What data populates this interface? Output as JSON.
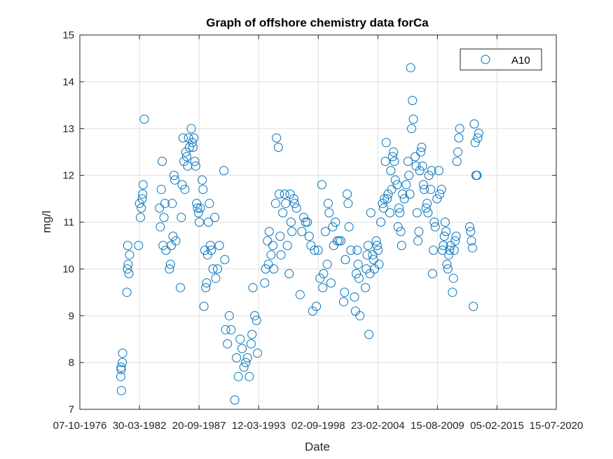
{
  "chart_data": {
    "type": "scatter",
    "title": "Graph of offshore chemistry data forCa",
    "xlabel": "Date",
    "ylabel": "mg/l",
    "xlim": [
      "1976-10-07",
      "2020-07-15"
    ],
    "ylim": [
      7,
      15
    ],
    "x_ticks": [
      "1976-10-07",
      "1982-03-30",
      "1987-09-20",
      "1993-03-12",
      "1998-09-02",
      "2004-02-23",
      "2009-08-15",
      "2015-02-05",
      "2020-07-15"
    ],
    "x_tick_labels": [
      "07-10-1976",
      "30-03-1982",
      "20-09-1987",
      "12-03-1993",
      "02-09-1998",
      "23-02-2004",
      "15-08-2009",
      "05-02-2015",
      "15-07-2020"
    ],
    "y_ticks": [
      7,
      8,
      9,
      10,
      11,
      12,
      13,
      14,
      15
    ],
    "y_tick_labels": [
      "7",
      "8",
      "9",
      "10",
      "11",
      "12",
      "13",
      "14",
      "15"
    ],
    "grid": true,
    "legend_position": "top-right",
    "colors": {
      "series": "#0072bd"
    },
    "series": [
      {
        "name": "A10",
        "points": [
          [
            "1980-08-01",
            7.4
          ],
          [
            "1980-07-10",
            7.7
          ],
          [
            "1980-07-20",
            7.9
          ],
          [
            "1980-09-01",
            8.0
          ],
          [
            "1980-09-10",
            8.2
          ],
          [
            "1980-07-25",
            7.85
          ],
          [
            "1981-02-01",
            9.5
          ],
          [
            "1981-02-20",
            10.0
          ],
          [
            "1981-03-15",
            10.1
          ],
          [
            "1981-04-10",
            9.9
          ],
          [
            "1981-05-01",
            10.3
          ],
          [
            "1981-03-01",
            10.5
          ],
          [
            "1982-03-01",
            10.5
          ],
          [
            "1982-05-01",
            11.1
          ],
          [
            "1982-04-01",
            11.4
          ],
          [
            "1982-06-01",
            11.3
          ],
          [
            "1982-07-01",
            11.5
          ],
          [
            "1982-07-15",
            11.6
          ],
          [
            "1982-08-01",
            11.8
          ],
          [
            "1982-09-10",
            13.2
          ],
          [
            "1984-02-01",
            11.3
          ],
          [
            "1984-03-01",
            10.9
          ],
          [
            "1984-04-01",
            11.7
          ],
          [
            "1984-05-01",
            12.3
          ],
          [
            "1984-06-01",
            10.5
          ],
          [
            "1984-07-01",
            11.1
          ],
          [
            "1984-09-01",
            10.4
          ],
          [
            "1984-08-01",
            11.4
          ],
          [
            "1985-01-01",
            10.0
          ],
          [
            "1985-02-01",
            10.1
          ],
          [
            "1985-03-01",
            10.5
          ],
          [
            "1985-04-01",
            11.4
          ],
          [
            "1985-05-01",
            10.7
          ],
          [
            "1985-06-01",
            12.0
          ],
          [
            "1985-07-01",
            11.9
          ],
          [
            "1985-08-01",
            10.6
          ],
          [
            "1986-01-01",
            9.6
          ],
          [
            "1986-02-01",
            11.1
          ],
          [
            "1986-03-01",
            11.8
          ],
          [
            "1986-04-01",
            12.8
          ],
          [
            "1986-05-01",
            12.3
          ],
          [
            "1986-06-01",
            11.7
          ],
          [
            "1986-07-01",
            12.5
          ],
          [
            "1986-08-01",
            12.4
          ],
          [
            "1986-09-01",
            12.2
          ],
          [
            "1986-10-01",
            12.8
          ],
          [
            "1986-11-01",
            12.6
          ],
          [
            "1987-01-01",
            13.0
          ],
          [
            "1987-02-01",
            12.7
          ],
          [
            "1987-03-01",
            12.6
          ],
          [
            "1987-04-01",
            12.8
          ],
          [
            "1987-05-01",
            12.3
          ],
          [
            "1987-06-01",
            12.2
          ],
          [
            "1987-07-01",
            11.4
          ],
          [
            "1987-08-01",
            11.3
          ],
          [
            "1987-09-01",
            11.2
          ],
          [
            "1987-10-01",
            11.0
          ],
          [
            "1987-11-01",
            11.3
          ],
          [
            "1988-01-01",
            11.9
          ],
          [
            "1988-02-01",
            11.7
          ],
          [
            "1988-03-01",
            9.2
          ],
          [
            "1988-04-01",
            10.4
          ],
          [
            "1988-05-01",
            9.6
          ],
          [
            "1988-06-01",
            9.7
          ],
          [
            "1988-07-01",
            10.3
          ],
          [
            "1988-08-01",
            11.0
          ],
          [
            "1988-09-01",
            11.4
          ],
          [
            "1988-10-01",
            10.5
          ],
          [
            "1988-11-01",
            10.4
          ],
          [
            "1989-01-01",
            10.0
          ],
          [
            "1989-03-01",
            11.1
          ],
          [
            "1989-04-01",
            9.8
          ],
          [
            "1989-06-01",
            10.0
          ],
          [
            "1989-08-01",
            10.5
          ],
          [
            "1990-01-01",
            12.1
          ],
          [
            "1990-02-01",
            10.2
          ],
          [
            "1990-03-01",
            8.7
          ],
          [
            "1990-05-01",
            8.4
          ],
          [
            "1990-07-01",
            9.0
          ],
          [
            "1990-09-01",
            8.7
          ],
          [
            "1991-01-01",
            7.2
          ],
          [
            "1991-03-01",
            8.1
          ],
          [
            "1991-05-01",
            7.7
          ],
          [
            "1991-07-01",
            8.5
          ],
          [
            "1991-09-01",
            8.3
          ],
          [
            "1991-11-01",
            7.9
          ],
          [
            "1992-01-01",
            8.0
          ],
          [
            "1992-03-01",
            8.1
          ],
          [
            "1992-05-01",
            7.7
          ],
          [
            "1992-07-01",
            8.4
          ],
          [
            "1992-08-01",
            8.6
          ],
          [
            "1992-09-01",
            9.6
          ],
          [
            "1992-11-01",
            9.0
          ],
          [
            "1993-01-01",
            8.9
          ],
          [
            "1993-02-01",
            8.2
          ],
          [
            "1993-10-01",
            9.7
          ],
          [
            "1993-11-01",
            10.0
          ],
          [
            "1994-01-01",
            10.6
          ],
          [
            "1994-02-01",
            10.1
          ],
          [
            "1994-03-01",
            10.8
          ],
          [
            "1994-05-01",
            10.3
          ],
          [
            "1994-07-01",
            10.5
          ],
          [
            "1994-08-01",
            10.0
          ],
          [
            "1994-10-01",
            11.4
          ],
          [
            "1994-11-01",
            12.8
          ],
          [
            "1995-01-01",
            12.6
          ],
          [
            "1995-02-01",
            11.6
          ],
          [
            "1995-03-01",
            10.7
          ],
          [
            "1995-04-01",
            10.3
          ],
          [
            "1995-06-01",
            11.2
          ],
          [
            "1995-08-01",
            11.6
          ],
          [
            "1995-09-01",
            11.4
          ],
          [
            "1995-11-01",
            10.5
          ],
          [
            "1996-01-01",
            9.9
          ],
          [
            "1996-02-01",
            11.6
          ],
          [
            "1996-03-01",
            11.0
          ],
          [
            "1996-04-01",
            10.8
          ],
          [
            "1996-06-01",
            11.5
          ],
          [
            "1996-07-01",
            11.4
          ],
          [
            "1996-09-01",
            11.3
          ],
          [
            "1997-01-01",
            9.45
          ],
          [
            "1997-03-01",
            10.8
          ],
          [
            "1997-05-01",
            11.1
          ],
          [
            "1997-07-01",
            11.0
          ],
          [
            "1997-09-01",
            11.0
          ],
          [
            "1997-11-01",
            10.7
          ],
          [
            "1998-01-01",
            10.5
          ],
          [
            "1998-03-01",
            9.1
          ],
          [
            "1998-05-01",
            10.4
          ],
          [
            "1998-07-01",
            9.2
          ],
          [
            "1998-09-01",
            10.4
          ],
          [
            "1998-11-01",
            9.8
          ],
          [
            "1999-01-01",
            11.8
          ],
          [
            "1999-02-01",
            9.6
          ],
          [
            "1999-03-01",
            9.9
          ],
          [
            "1999-05-01",
            10.8
          ],
          [
            "1999-07-01",
            10.1
          ],
          [
            "1999-08-01",
            11.4
          ],
          [
            "1999-09-01",
            11.2
          ],
          [
            "1999-11-01",
            9.7
          ],
          [
            "2000-01-01",
            10.9
          ],
          [
            "2000-02-01",
            10.5
          ],
          [
            "2000-04-01",
            11.0
          ],
          [
            "2000-06-01",
            10.6
          ],
          [
            "2000-08-01",
            10.6
          ],
          [
            "2000-10-01",
            10.6
          ],
          [
            "2001-01-01",
            9.3
          ],
          [
            "2001-02-01",
            9.5
          ],
          [
            "2001-03-01",
            10.2
          ],
          [
            "2001-05-01",
            11.6
          ],
          [
            "2001-06-01",
            11.4
          ],
          [
            "2001-07-01",
            10.9
          ],
          [
            "2001-09-01",
            10.4
          ],
          [
            "2002-01-01",
            9.4
          ],
          [
            "2002-02-01",
            9.1
          ],
          [
            "2002-03-01",
            9.9
          ],
          [
            "2002-04-01",
            10.4
          ],
          [
            "2002-05-01",
            10.1
          ],
          [
            "2002-06-01",
            9.8
          ],
          [
            "2002-07-01",
            9.0
          ],
          [
            "2003-01-01",
            9.6
          ],
          [
            "2003-02-01",
            10.0
          ],
          [
            "2003-03-01",
            10.3
          ],
          [
            "2003-04-01",
            10.5
          ],
          [
            "2003-05-01",
            8.6
          ],
          [
            "2003-06-01",
            9.9
          ],
          [
            "2003-07-01",
            11.2
          ],
          [
            "2003-09-01",
            10.3
          ],
          [
            "2003-10-01",
            10.2
          ],
          [
            "2003-11-01",
            10.0
          ],
          [
            "2004-01-01",
            10.6
          ],
          [
            "2004-02-01",
            10.5
          ],
          [
            "2004-03-01",
            10.4
          ],
          [
            "2004-04-01",
            10.1
          ],
          [
            "2004-06-01",
            11.0
          ],
          [
            "2004-08-01",
            11.4
          ],
          [
            "2004-09-01",
            11.3
          ],
          [
            "2004-10-01",
            11.5
          ],
          [
            "2004-11-01",
            12.3
          ],
          [
            "2004-12-01",
            12.7
          ],
          [
            "2005-01-01",
            11.5
          ],
          [
            "2005-02-01",
            11.6
          ],
          [
            "2005-04-01",
            11.2
          ],
          [
            "2005-05-01",
            12.1
          ],
          [
            "2005-06-01",
            11.7
          ],
          [
            "2005-07-01",
            12.4
          ],
          [
            "2005-08-01",
            12.5
          ],
          [
            "2005-09-01",
            12.3
          ],
          [
            "2005-10-01",
            11.9
          ],
          [
            "2005-12-01",
            11.8
          ],
          [
            "2006-01-01",
            10.9
          ],
          [
            "2006-02-01",
            11.3
          ],
          [
            "2006-03-01",
            11.2
          ],
          [
            "2006-04-01",
            10.8
          ],
          [
            "2006-05-01",
            10.5
          ],
          [
            "2006-06-01",
            11.6
          ],
          [
            "2006-08-01",
            11.5
          ],
          [
            "2006-10-01",
            11.8
          ],
          [
            "2006-12-01",
            12.3
          ],
          [
            "2007-01-01",
            12.0
          ],
          [
            "2007-02-01",
            11.6
          ],
          [
            "2007-03-01",
            14.3
          ],
          [
            "2007-04-01",
            13.0
          ],
          [
            "2007-05-01",
            13.6
          ],
          [
            "2007-06-01",
            13.2
          ],
          [
            "2007-08-01",
            12.4
          ],
          [
            "2007-09-01",
            12.2
          ],
          [
            "2007-10-01",
            11.2
          ],
          [
            "2007-11-01",
            10.6
          ],
          [
            "2007-12-01",
            10.8
          ],
          [
            "2008-01-01",
            12.1
          ],
          [
            "2008-02-01",
            12.5
          ],
          [
            "2008-03-01",
            12.6
          ],
          [
            "2008-04-01",
            12.2
          ],
          [
            "2008-05-01",
            11.8
          ],
          [
            "2008-06-01",
            11.7
          ],
          [
            "2008-08-01",
            11.3
          ],
          [
            "2008-09-01",
            11.4
          ],
          [
            "2008-10-01",
            11.2
          ],
          [
            "2008-11-01",
            12.0
          ],
          [
            "2009-01-01",
            11.7
          ],
          [
            "2009-02-01",
            12.1
          ],
          [
            "2009-03-01",
            9.9
          ],
          [
            "2009-04-01",
            10.4
          ],
          [
            "2009-05-01",
            11.0
          ],
          [
            "2009-06-01",
            10.9
          ],
          [
            "2009-08-01",
            11.5
          ],
          [
            "2009-10-01",
            12.1
          ],
          [
            "2009-11-01",
            11.6
          ],
          [
            "2010-01-01",
            11.7
          ],
          [
            "2010-02-01",
            10.4
          ],
          [
            "2010-03-01",
            10.5
          ],
          [
            "2010-04-01",
            10.7
          ],
          [
            "2010-05-01",
            11.0
          ],
          [
            "2010-06-01",
            10.8
          ],
          [
            "2010-07-01",
            10.1
          ],
          [
            "2010-08-01",
            10.0
          ],
          [
            "2010-09-01",
            10.3
          ],
          [
            "2010-10-01",
            10.4
          ],
          [
            "2010-11-01",
            10.5
          ],
          [
            "2011-01-01",
            9.5
          ],
          [
            "2011-02-01",
            9.8
          ],
          [
            "2011-03-01",
            10.4
          ],
          [
            "2011-04-01",
            10.6
          ],
          [
            "2011-05-01",
            10.7
          ],
          [
            "2011-06-01",
            12.3
          ],
          [
            "2011-07-01",
            12.5
          ],
          [
            "2011-08-01",
            12.8
          ],
          [
            "2011-09-01",
            13.0
          ],
          [
            "2012-08-01",
            10.9
          ],
          [
            "2012-09-01",
            10.8
          ],
          [
            "2012-10-01",
            10.6
          ],
          [
            "2012-11-01",
            10.45
          ],
          [
            "2012-12-01",
            9.2
          ],
          [
            "2013-01-01",
            13.1
          ],
          [
            "2013-02-01",
            12.7
          ],
          [
            "2013-03-01",
            12.0
          ],
          [
            "2013-04-01",
            12.0
          ],
          [
            "2013-05-01",
            12.8
          ],
          [
            "2013-06-01",
            12.9
          ]
        ]
      }
    ]
  }
}
